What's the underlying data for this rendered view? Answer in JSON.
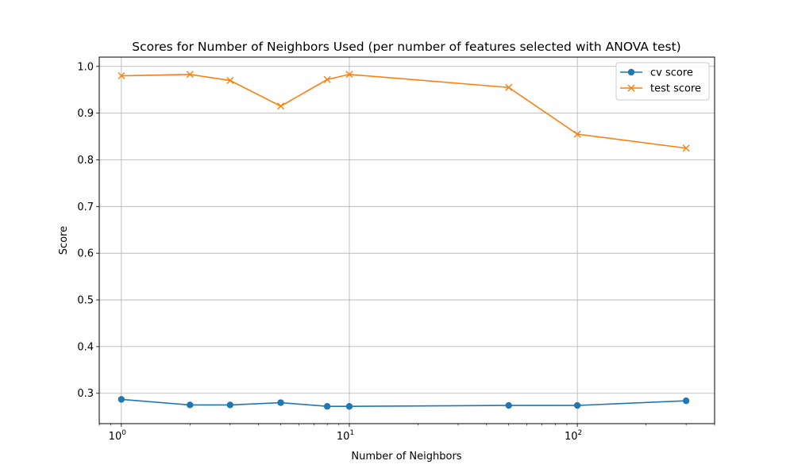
{
  "chart_data": {
    "type": "line",
    "title": "Scores for Number of Neighbors Used (per number of features selected with ANOVA test)",
    "xlabel": "Number of Neighbors",
    "ylabel": "Score",
    "xscale": "log",
    "xlim": [
      0.8,
      400
    ],
    "ylim": [
      0.235,
      1.02
    ],
    "grid": true,
    "legend_position": "top-right",
    "x": [
      1,
      2,
      3,
      5,
      8,
      10,
      50,
      100,
      300
    ],
    "series": [
      {
        "name": "cv score",
        "color": "#1f77b4",
        "marker": "circle",
        "values": [
          0.287,
          0.275,
          0.275,
          0.28,
          0.272,
          0.272,
          0.274,
          0.274,
          0.284
        ]
      },
      {
        "name": "test score",
        "color": "#ff7f0e",
        "marker": "x",
        "values": [
          0.98,
          0.983,
          0.97,
          0.915,
          0.972,
          0.983,
          0.955,
          0.855,
          0.825
        ]
      }
    ],
    "x_ticks": [
      {
        "base": "10",
        "exp": "0",
        "value": 1
      },
      {
        "base": "10",
        "exp": "1",
        "value": 10
      },
      {
        "base": "10",
        "exp": "2",
        "value": 100
      }
    ],
    "y_ticks": [
      "0.3",
      "0.4",
      "0.5",
      "0.6",
      "0.7",
      "0.8",
      "0.9",
      "1.0"
    ]
  }
}
